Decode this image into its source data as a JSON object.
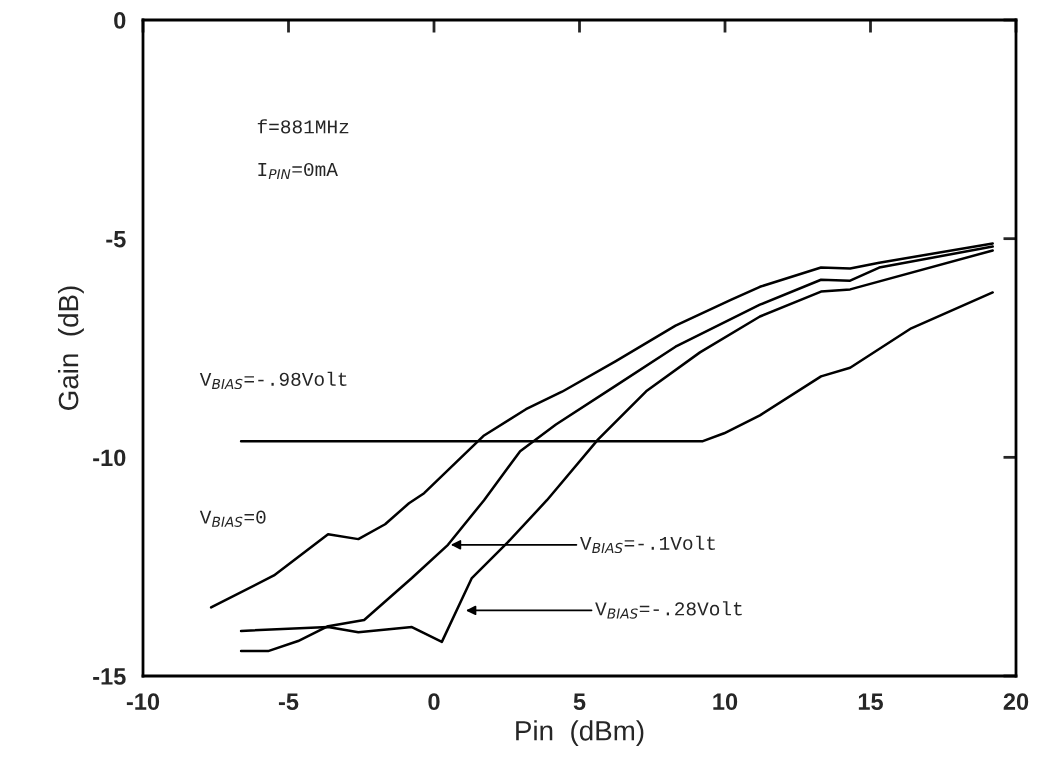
{
  "chart_data": {
    "type": "line",
    "xlabel": "Pin  (dBm)",
    "ylabel": "Gain  (dB)",
    "xlim": [
      -10,
      20
    ],
    "xticks": [
      -10,
      -5,
      0,
      5,
      10,
      15,
      20
    ],
    "ylim": [
      -15,
      0
    ],
    "yticks": [
      -15,
      -10,
      -5,
      0
    ],
    "grid": false,
    "legend": false,
    "marker": "none",
    "line_style": "solid",
    "series": [
      {
        "color": "#000000",
        "x": [
          -7.66,
          -5.5,
          -3.64,
          -2.6,
          -1.68,
          -0.86,
          -0.34,
          1.72,
          3.16,
          4.4,
          6.25,
          8.3,
          10.2,
          11.2,
          13.3,
          14.3,
          15.3,
          19.2
        ],
        "values": [
          -13.43,
          -12.7,
          -11.76,
          -11.87,
          -11.53,
          -11.05,
          -10.82,
          -9.5,
          -8.9,
          -8.5,
          -7.8,
          -6.99,
          -6.4,
          -6.1,
          -5.66,
          -5.68,
          -5.55,
          -5.11
        ]
      },
      {
        "color": "#000000",
        "x": [
          -6.63,
          -5.7,
          -4.67,
          -3.64,
          -2.4,
          -0.76,
          0.48,
          1.72,
          2.96,
          4.19,
          6.25,
          8.3,
          11.2,
          13.3,
          14.3,
          15.3,
          19.2
        ],
        "values": [
          -14.43,
          -14.43,
          -14.2,
          -13.86,
          -13.72,
          -12.76,
          -12.0,
          -10.98,
          -9.86,
          -9.25,
          -8.36,
          -7.47,
          -6.51,
          -5.94,
          -5.96,
          -5.66,
          -5.18
        ]
      },
      {
        "color": "#000000",
        "x": [
          -6.63,
          -3.64,
          -2.6,
          -0.76,
          0.27,
          1.3,
          2.54,
          3.88,
          5.64,
          7.29,
          9.14,
          11.2,
          13.3,
          14.3,
          19.2
        ],
        "values": [
          -13.97,
          -13.88,
          -14.0,
          -13.88,
          -14.22,
          -12.76,
          -11.94,
          -10.98,
          -9.59,
          -8.49,
          -7.6,
          -6.78,
          -6.21,
          -6.16,
          -5.27
        ]
      },
      {
        "color": "#000000",
        "x": [
          -6.63,
          9.24,
          9.97,
          11.2,
          13.3,
          14.3,
          16.4,
          19.2
        ],
        "values": [
          -9.63,
          -9.63,
          -9.45,
          -9.04,
          -8.15,
          -7.95,
          -7.05,
          -6.23
        ]
      }
    ],
    "annotations": [
      "f=881MHz",
      "I$_{PIN}$=0mA",
      "V$_{BIAS}$=-.98Volt",
      "V$_{BIAS}$=0",
      {
        "text": "V$_{BIAS}$=-.1Volt",
        "x": 0.48,
        "y": -12.0
      },
      {
        "text": "V$_{BIAS}$=-.28Volt",
        "x": 1.0,
        "y": -13.5
      }
    ]
  }
}
